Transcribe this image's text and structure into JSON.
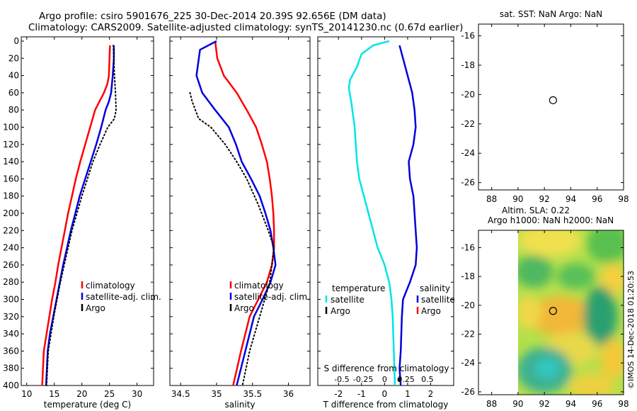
{
  "title_line1": "Argo profile: csiro 5901676_225 30-Dec-2014 20.39S 92.656E (DM data)",
  "title_line2": "Climatology: CARS2009. Satellite-adjusted climatology: synTS_20141230.nc (0.67d earlier)",
  "watermark": "©IMOS 14-Dec-2018 01:20:53",
  "colors": {
    "climatology": "#ff0000",
    "satellite": "#0000dd",
    "argo": "#000000",
    "temp_diff": "#00e5e5"
  },
  "chart_data": [
    {
      "id": "temperature",
      "type": "line",
      "xlabel": "temperature (deg C)",
      "xlim": [
        9,
        33
      ],
      "ylim": [
        0,
        400
      ],
      "xticks": [
        10,
        15,
        20,
        25,
        30
      ],
      "yticks": [
        0,
        20,
        40,
        60,
        80,
        100,
        120,
        140,
        160,
        180,
        200,
        220,
        240,
        260,
        280,
        300,
        320,
        340,
        360,
        380,
        400
      ],
      "legend": [
        "climatology",
        "satellite-adj. clim.",
        "Argo"
      ],
      "series": [
        {
          "name": "climatology",
          "style": "solid",
          "color": "#ff0000",
          "x": [
            25.1,
            25.0,
            24.9,
            24.6,
            24.0,
            23.2,
            22.4,
            21.5,
            20.6,
            19.7,
            18.9,
            18.2,
            17.5,
            16.9,
            16.3,
            15.7,
            15.2,
            14.6,
            14.1,
            13.6,
            13.1,
            12.8
          ],
          "y": [
            5,
            20,
            40,
            50,
            60,
            70,
            80,
            100,
            120,
            140,
            160,
            180,
            200,
            220,
            240,
            260,
            280,
            300,
            320,
            340,
            360,
            400
          ]
        },
        {
          "name": "satellite-adj. clim.",
          "style": "solid",
          "color": "#0000dd",
          "x": [
            25.8,
            25.8,
            25.6,
            25.3,
            24.9,
            24.3,
            23.5,
            22.6,
            21.6,
            20.6,
            19.6,
            18.8,
            18.0,
            17.3,
            16.6,
            16.0,
            15.4,
            14.8,
            14.2,
            13.8,
            13.5
          ],
          "y": [
            5,
            20,
            40,
            60,
            70,
            80,
            100,
            120,
            140,
            160,
            180,
            200,
            220,
            240,
            260,
            280,
            300,
            320,
            340,
            360,
            400
          ]
        },
        {
          "name": "Argo",
          "style": "dotted",
          "color": "#000000",
          "x": [
            25.7,
            25.9,
            26.1,
            26.2,
            25.9,
            24.7,
            23.3,
            22.0,
            21.0,
            20.0,
            19.1,
            18.2,
            17.5,
            16.8,
            16.1,
            15.5,
            14.9,
            14.4,
            13.9,
            13.6
          ],
          "y": [
            5,
            40,
            60,
            80,
            90,
            100,
            120,
            140,
            160,
            180,
            200,
            220,
            240,
            260,
            280,
            300,
            320,
            340,
            360,
            400
          ]
        }
      ]
    },
    {
      "id": "salinity",
      "type": "line",
      "xlabel": "salinity",
      "xlim": [
        34.35,
        36.3
      ],
      "ylim": [
        0,
        400
      ],
      "xticks": [
        34.5,
        35,
        35.5,
        36
      ],
      "legend": [
        "climatology",
        "satellite-adj. clim.",
        "Argo"
      ],
      "series": [
        {
          "name": "climatology",
          "style": "solid",
          "color": "#ff0000",
          "x": [
            34.98,
            35.01,
            35.1,
            35.28,
            35.42,
            35.55,
            35.63,
            35.7,
            35.74,
            35.77,
            35.79,
            35.8,
            35.8,
            35.77,
            35.7,
            35.58,
            35.46,
            35.34,
            35.23
          ],
          "y": [
            0,
            20,
            40,
            60,
            80,
            100,
            120,
            140,
            160,
            180,
            200,
            220,
            240,
            260,
            280,
            300,
            320,
            360,
            400
          ]
        },
        {
          "name": "satellite-adj. clim.",
          "style": "solid",
          "color": "#0000dd",
          "x": [
            35.0,
            34.77,
            34.72,
            34.8,
            34.98,
            35.17,
            35.27,
            35.35,
            35.48,
            35.6,
            35.68,
            35.75,
            35.79,
            35.82,
            35.75,
            35.64,
            35.52,
            35.4,
            35.28
          ],
          "y": [
            0,
            10,
            40,
            60,
            80,
            100,
            120,
            140,
            160,
            180,
            200,
            220,
            240,
            260,
            280,
            300,
            320,
            360,
            400
          ]
        },
        {
          "name": "Argo",
          "style": "dotted",
          "color": "#000000",
          "x": [
            34.63,
            34.66,
            34.75,
            34.92,
            35.12,
            35.28,
            35.42,
            35.58,
            35.72,
            35.8,
            35.74,
            35.6,
            35.46,
            35.36
          ],
          "y": [
            60,
            70,
            90,
            100,
            120,
            140,
            160,
            190,
            220,
            240,
            280,
            320,
            360,
            400
          ]
        }
      ]
    },
    {
      "id": "difference",
      "type": "line",
      "xlabel": "T difference from climatology",
      "xlim": [
        -2.9,
        3.0
      ],
      "ylim": [
        0,
        400
      ],
      "xticks": [
        -2,
        -1,
        0,
        1,
        2
      ],
      "x2label": "S difference from climatology",
      "x2ticks": [
        -0.5,
        -0.25,
        0,
        0.25,
        0.5
      ],
      "legend_temperature": {
        "title": "temperature",
        "items": [
          "satellite",
          "Argo"
        ]
      },
      "legend_salinity": {
        "title": "salinity",
        "items": [
          "satellite",
          "Argo"
        ]
      },
      "series": [
        {
          "name": "T satellite",
          "color": "#00e5e5",
          "x": [
            0.2,
            -0.5,
            -1.0,
            -1.2,
            -1.5,
            -1.55,
            -1.45,
            -1.3,
            -1.2,
            -1.1,
            -0.9,
            -0.7,
            -0.3,
            0.0,
            0.2,
            0.3,
            0.35,
            0.4,
            0.45
          ],
          "y": [
            0,
            5,
            15,
            30,
            45,
            55,
            70,
            100,
            140,
            160,
            180,
            200,
            240,
            260,
            280,
            300,
            320,
            360,
            400
          ]
        },
        {
          "name": "S satellite",
          "color": "#0000dd",
          "x": [
            0.65,
            0.8,
            1.0,
            1.2,
            1.3,
            1.35,
            1.25,
            1.05,
            1.1,
            1.25,
            1.3,
            1.35,
            1.4,
            1.35,
            1.1,
            0.8,
            0.75,
            0.7,
            0.65,
            0.7
          ],
          "y": [
            5,
            20,
            40,
            60,
            80,
            100,
            120,
            140,
            160,
            180,
            200,
            220,
            240,
            260,
            280,
            300,
            320,
            360,
            380,
            400
          ]
        }
      ]
    },
    {
      "id": "sst-map",
      "type": "scatter",
      "title": "sat. SST: NaN Argo: NaN",
      "xlim": [
        87,
        98
      ],
      "ylim": [
        -26.5,
        -15.2
      ],
      "xticks": [
        88,
        90,
        92,
        94,
        96,
        98
      ],
      "yticks": [
        -16,
        -18,
        -20,
        -22,
        -24,
        -26
      ],
      "points": [
        {
          "x": 92.656,
          "y": -20.39,
          "label": "Argo profile"
        }
      ]
    },
    {
      "id": "sla-map",
      "type": "heatmap",
      "title1": "Altim. SLA: 0.22",
      "title2": "Argo h1000: NaN h2000: NaN",
      "xlim": [
        87,
        98
      ],
      "ylim": [
        -26.2,
        -14.8
      ],
      "xticks": [
        88,
        90,
        92,
        94,
        96,
        98
      ],
      "yticks": [
        -16,
        -18,
        -20,
        -22,
        -24,
        -26
      ],
      "data_extent_x": [
        90,
        98
      ],
      "points": [
        {
          "x": 92.656,
          "y": -20.39,
          "label": "Argo profile"
        }
      ]
    }
  ]
}
